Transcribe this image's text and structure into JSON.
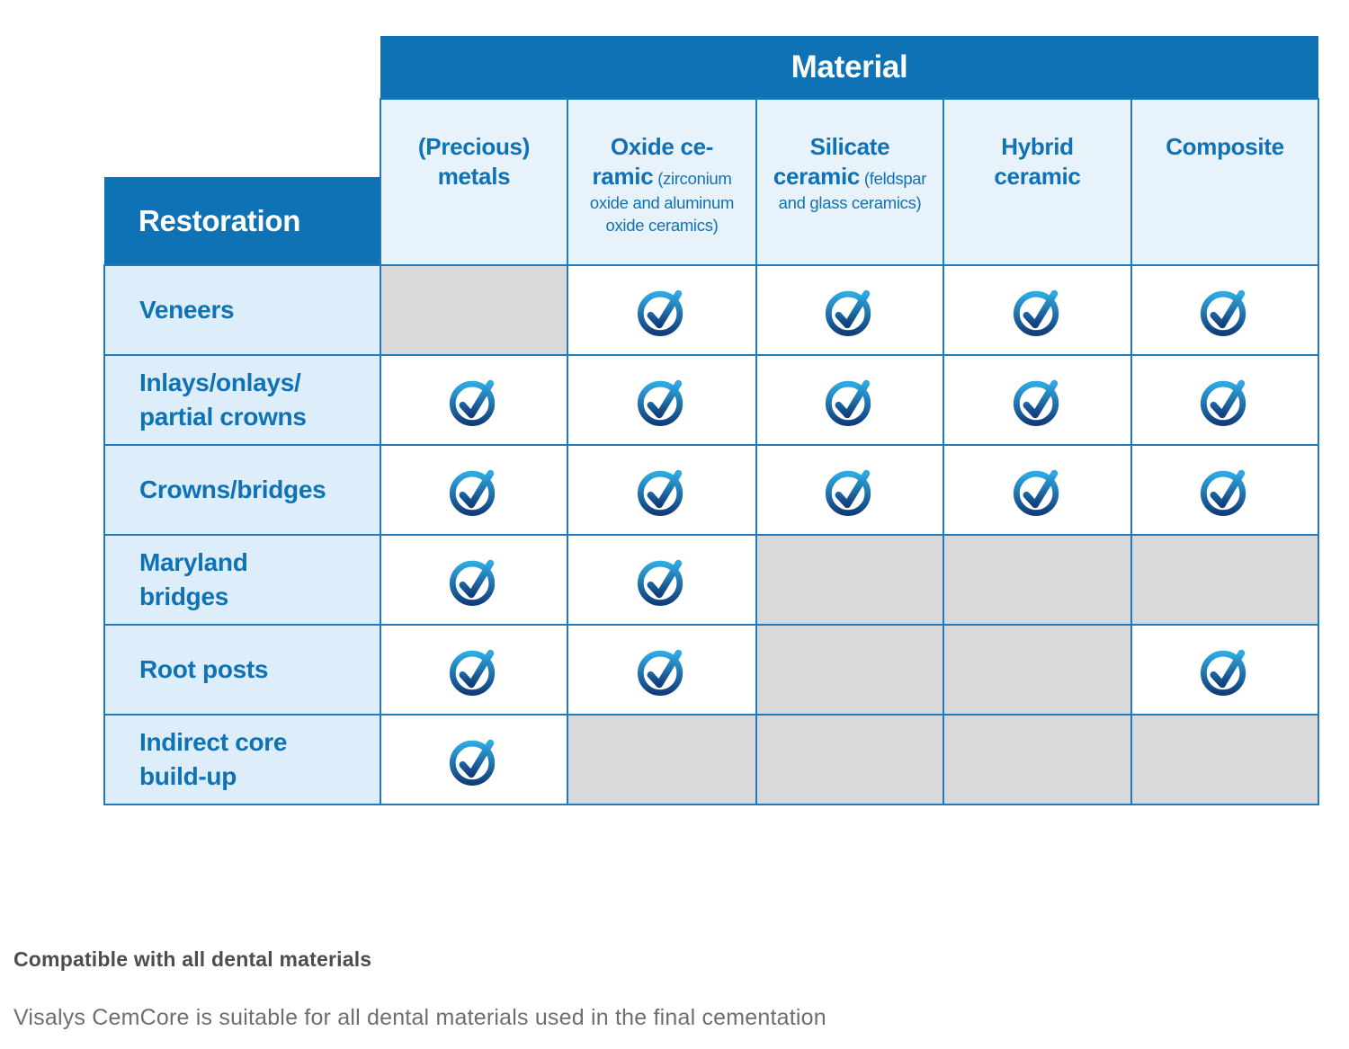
{
  "table": {
    "material_header": "Material",
    "restoration_header": "Restoration",
    "columns": [
      {
        "title": "(Precious) metals",
        "subtitle": ""
      },
      {
        "title": "Oxide ce-ramic",
        "subtitle": "(zirconium oxide and aluminum oxide ceramics)"
      },
      {
        "title": "Silicate ceramic",
        "subtitle": "(feldspar and glass ceramics)"
      },
      {
        "title": "Hybrid ceramic",
        "subtitle": ""
      },
      {
        "title": "Composite",
        "subtitle": ""
      }
    ],
    "rows": [
      {
        "label": "Veneers",
        "cells": [
          "na",
          "check",
          "check",
          "check",
          "check"
        ]
      },
      {
        "label": "Inlays/onlays/\npartial crowns",
        "cells": [
          "check",
          "check",
          "check",
          "check",
          "check"
        ]
      },
      {
        "label": "Crowns/bridges",
        "cells": [
          "check",
          "check",
          "check",
          "check",
          "check"
        ]
      },
      {
        "label": "Maryland\nbridges",
        "cells": [
          "check",
          "check",
          "na",
          "na",
          "na"
        ]
      },
      {
        "label": "Root posts",
        "cells": [
          "check",
          "check",
          "na",
          "na",
          "check"
        ]
      },
      {
        "label": "Indirect core\nbuild-up",
        "cells": [
          "check",
          "na",
          "na",
          "na",
          "na"
        ]
      }
    ],
    "cell_legend": {
      "check": "compatible",
      "na": "not applicable"
    }
  },
  "footer": {
    "heading": "Compatible with all dental materials",
    "note": "Visalys CemCore is suitable for all dental materials used in the final cementation"
  },
  "colors": {
    "brand_blue": "#0f72b5",
    "grid_blue": "#2579b8",
    "light_blue_label": "#ddeefa",
    "light_blue_header": "#e7f2fb",
    "disabled_gray": "#d9d9d9",
    "check_gradient_top": "#2fa9e1",
    "check_gradient_bottom": "#123f7c",
    "footer_heading_gray": "#4d4d4d",
    "footer_note_gray": "#6e6e6e"
  }
}
